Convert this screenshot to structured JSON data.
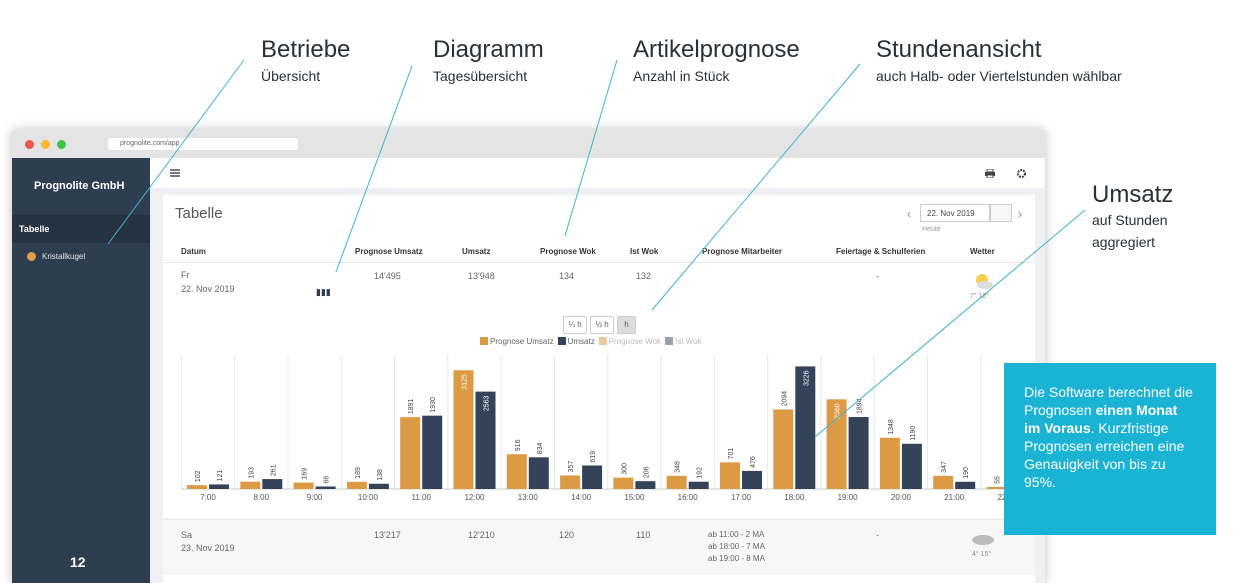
{
  "annotations": [
    {
      "title": "Betriebe",
      "subtitle": "Übersicht"
    },
    {
      "title": "Diagramm",
      "subtitle": "Tagesübersicht"
    },
    {
      "title": "Artikelprognose",
      "subtitle": "Anzahl in Stück"
    },
    {
      "title": "Stundenansicht",
      "subtitle": "auch Halb- oder Viertelstunden wählbar"
    },
    {
      "title": "Umsatz",
      "subtitle": "auf Stunden",
      "subtitle2": "aggregiert"
    }
  ],
  "browser": {
    "url": "prognolite.com/app"
  },
  "sidebar": {
    "brand": "Prognolite GmbH",
    "section": "Tabelle",
    "item": "Kristallkugel",
    "page_number": "12"
  },
  "panel": {
    "title": "Tabelle",
    "date": "22. Nov 2019",
    "date_hint": "Heute"
  },
  "table": {
    "columns": [
      "Datum",
      "Prognose Umsatz",
      "Umsatz",
      "Prognose Wok",
      "Ist Wok",
      "Prognose Mitarbeiter",
      "Feiertage & Schulferien",
      "Wetter"
    ],
    "rows": [
      {
        "day": "Fr",
        "date": "22. Nov 2019",
        "prognose_umsatz": "14'495",
        "umsatz": "13'948",
        "prognose_wok": "134",
        "ist_wok": "132",
        "mitarbeiter": [],
        "feiertage": "-",
        "wetter": "7° 12°"
      },
      {
        "day": "Sa",
        "date": "23. Nov 2019",
        "prognose_umsatz": "13'217",
        "umsatz": "12'210",
        "prognose_wok": "120",
        "ist_wok": "110",
        "mitarbeiter": [
          "ab 11:00 - 2 MA",
          "ab 18:00 - 7 MA",
          "ab 19:00 - 8 MA"
        ],
        "feiertage": "-",
        "wetter": "4° 15°"
      }
    ]
  },
  "toggle": [
    "¼ h",
    "½ h",
    "h"
  ],
  "chart_data": {
    "type": "bar",
    "categories": [
      "7:00",
      "8:00",
      "9:00",
      "10:00",
      "11:00",
      "12:00",
      "13:00",
      "14:00",
      "15:00",
      "16:00",
      "17:00",
      "18:00",
      "19:00",
      "20:00",
      "21:00",
      "22:00"
    ],
    "series": [
      {
        "name": "Prognose Umsatz",
        "color": "#dc9a45",
        "values": [
          102,
          193,
          169,
          189,
          1891,
          3125,
          916,
          357,
          300,
          348,
          701,
          2094,
          2360,
          1348,
          347,
          55
        ]
      },
      {
        "name": "Umsatz",
        "color": "#34425a",
        "values": [
          121,
          261,
          66,
          138,
          1930,
          2563,
          834,
          619,
          206,
          192,
          476,
          3226,
          1894,
          1190,
          190,
          null
        ]
      },
      {
        "name": "Prognose Wok",
        "color": "#e8c9a0",
        "hidden": true
      },
      {
        "name": "Ist Wok",
        "color": "#9aa1ad",
        "hidden": true
      }
    ]
  },
  "callout": {
    "before": "Die Software berechnet die Prognosen ",
    "bold": "einen Monat im Voraus",
    "after": ". Kurzfristige Prognosen erreichen eine Genauigkeit von bis zu 95%."
  }
}
